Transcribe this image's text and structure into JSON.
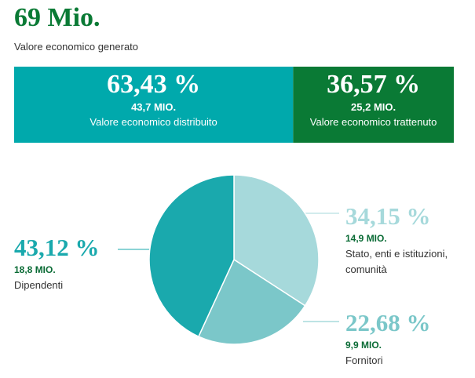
{
  "header": {
    "title": "69 Mio.",
    "subtitle": "Valore economico generato"
  },
  "split": {
    "segments": [
      {
        "value": 63.43,
        "value_label": "63,43 %",
        "amount": "43,7 MIO.",
        "label": "Valore economico distribuito",
        "color": "#00a9ac"
      },
      {
        "value": 36.57,
        "value_label": "36,57 %",
        "amount": "25,2 MIO.",
        "label": "Valore economico trattenuto",
        "color": "#0a7a35"
      }
    ]
  },
  "chart_data": {
    "type": "pie",
    "categories": [
      "Stato, enti e istituzioni, comunità",
      "Fornitori",
      "Dipendenti"
    ],
    "values": [
      34.15,
      22.68,
      43.12
    ],
    "value_labels": [
      "34,15 %",
      "22,68 %",
      "43,12 %"
    ],
    "amounts": [
      "14,9 MIO.",
      "9,9 MIO.",
      "18,8 MIO."
    ],
    "colors": [
      "#a6d9db",
      "#7bc7c9",
      "#1aa9ad"
    ]
  }
}
